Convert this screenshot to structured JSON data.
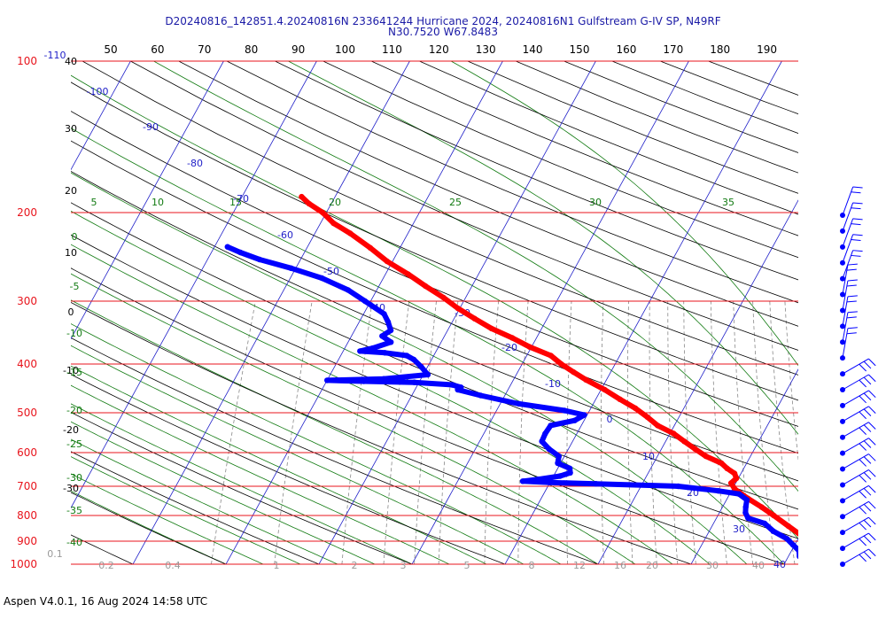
{
  "header": {
    "title_line1": "D20240816_142851.4.20240816N 233641244 Hurricane 2024, 20240816N1 Gulfstream G-IV SP, N49RF",
    "title_line2": "N30.7520 W67.8483"
  },
  "footer": {
    "text": "Aspen V4.0.1, 16 Aug 2024  14:58 UTC"
  },
  "colors": {
    "pressure_lines": "#e8141c",
    "pressure_labels": "#e8141c",
    "isotherms": "#1f1fc8",
    "dry_adiabats": "#000000",
    "moist_adiabats": "#117a11",
    "mixing_ratio": "#888888",
    "temperature": "#ff0000",
    "dewpoint": "#0000ff",
    "wind_barbs": "#0000ff"
  },
  "chart_data": {
    "type": "skew-t",
    "title": "D20240816_142851.4.20240816N 233641244 Hurricane 2024, 20240816N1 Gulfstream G-IV SP, N49RF",
    "subtitle": "N30.7520 W67.8483",
    "pressure_levels_hpa": [
      "100",
      "200",
      "300",
      "400",
      "500",
      "600",
      "700",
      "800",
      "900",
      "1000"
    ],
    "theta_axis_labels": [
      "50",
      "60",
      "70",
      "80",
      "90",
      "100",
      "110",
      "120",
      "130",
      "140",
      "150",
      "160",
      "170",
      "180",
      "190"
    ],
    "isotherm_labels": [
      "-110",
      "-100",
      "-90",
      "-80",
      "-70",
      "-60",
      "-50",
      "-40",
      "-30",
      "-20",
      "-10",
      "0",
      "10",
      "20",
      "30",
      "40"
    ],
    "dry_adiabat_labels": [
      "40",
      "30",
      "20",
      "10",
      "0",
      "-10",
      "-20",
      "-30"
    ],
    "moist_adiabat_labels": [
      "5",
      "10",
      "15",
      "20",
      "25",
      "30",
      "35"
    ],
    "moist_adiabat_left_labels": [
      "0",
      "-5",
      "-10",
      "-15",
      "-20",
      "-25",
      "-30",
      "-35",
      "-40"
    ],
    "mixing_ratio_labels": [
      "0.1",
      "0.2",
      "0.4",
      "1",
      "2",
      "3",
      "5",
      "8",
      "12",
      "16",
      "20",
      "30",
      "40"
    ],
    "temperature_profile": [
      {
        "p": 1010,
        "t": 27.5
      },
      {
        "p": 1000,
        "t": 26.5
      },
      {
        "p": 985,
        "t": 25.6
      },
      {
        "p": 960,
        "t": 24.3
      },
      {
        "p": 930,
        "t": 22.8
      },
      {
        "p": 900,
        "t": 21.2
      },
      {
        "p": 870,
        "t": 19.8
      },
      {
        "p": 840,
        "t": 18.2
      },
      {
        "p": 800,
        "t": 16.0
      },
      {
        "p": 770,
        "t": 14.2
      },
      {
        "p": 740,
        "t": 12.2
      },
      {
        "p": 710,
        "t": 10.3
      },
      {
        "p": 690,
        "t": 9.5
      },
      {
        "p": 675,
        "t": 9.8
      },
      {
        "p": 660,
        "t": 9.3
      },
      {
        "p": 645,
        "t": 8.2
      },
      {
        "p": 630,
        "t": 7.3
      },
      {
        "p": 610,
        "t": 5.2
      },
      {
        "p": 590,
        "t": 3.6
      },
      {
        "p": 570,
        "t": 2.0
      },
      {
        "p": 550,
        "t": 0.4
      },
      {
        "p": 530,
        "t": -1.8
      },
      {
        "p": 510,
        "t": -3.4
      },
      {
        "p": 490,
        "t": -5.2
      },
      {
        "p": 470,
        "t": -7.4
      },
      {
        "p": 450,
        "t": -9.6
      },
      {
        "p": 430,
        "t": -12.2
      },
      {
        "p": 415,
        "t": -14.0
      },
      {
        "p": 400,
        "t": -15.8
      },
      {
        "p": 385,
        "t": -17.4
      },
      {
        "p": 370,
        "t": -20.2
      },
      {
        "p": 355,
        "t": -22.6
      },
      {
        "p": 340,
        "t": -25.4
      },
      {
        "p": 325,
        "t": -27.8
      },
      {
        "p": 310,
        "t": -30.2
      },
      {
        "p": 295,
        "t": -32.4
      },
      {
        "p": 280,
        "t": -35.0
      },
      {
        "p": 265,
        "t": -37.6
      },
      {
        "p": 250,
        "t": -40.6
      },
      {
        "p": 235,
        "t": -43.2
      },
      {
        "p": 220,
        "t": -46.2
      },
      {
        "p": 210,
        "t": -48.6
      },
      {
        "p": 200,
        "t": -50.4
      },
      {
        "p": 192,
        "t": -52.4
      },
      {
        "p": 186,
        "t": -53.6
      }
    ],
    "dewpoint_profile": [
      {
        "p": 1010,
        "t": 23.3
      },
      {
        "p": 990,
        "t": 22.4
      },
      {
        "p": 965,
        "t": 21.2
      },
      {
        "p": 940,
        "t": 20.8
      },
      {
        "p": 915,
        "t": 19.8
      },
      {
        "p": 890,
        "t": 18.8
      },
      {
        "p": 860,
        "t": 16.9
      },
      {
        "p": 830,
        "t": 15.5
      },
      {
        "p": 810,
        "t": 13.4
      },
      {
        "p": 790,
        "t": 12.8
      },
      {
        "p": 770,
        "t": 12.5
      },
      {
        "p": 745,
        "t": 12.2
      },
      {
        "p": 725,
        "t": 11.0
      },
      {
        "p": 715,
        "t": 8.6
      },
      {
        "p": 700,
        "t": 4.0
      },
      {
        "p": 692,
        "t": -5.0
      },
      {
        "p": 688,
        "t": -10.0
      },
      {
        "p": 684,
        "t": -13.0
      },
      {
        "p": 678,
        "t": -11.4
      },
      {
        "p": 668,
        "t": -9.3
      },
      {
        "p": 658,
        "t": -8.4
      },
      {
        "p": 645,
        "t": -8.7
      },
      {
        "p": 630,
        "t": -10.3
      },
      {
        "p": 610,
        "t": -10.6
      },
      {
        "p": 590,
        "t": -12.1
      },
      {
        "p": 570,
        "t": -13.3
      },
      {
        "p": 550,
        "t": -13.4
      },
      {
        "p": 530,
        "t": -13.3
      },
      {
        "p": 518,
        "t": -11.0
      },
      {
        "p": 505,
        "t": -10.3
      },
      {
        "p": 495,
        "t": -12.7
      },
      {
        "p": 480,
        "t": -18.0
      },
      {
        "p": 462,
        "t": -22.6
      },
      {
        "p": 450,
        "t": -25.4
      },
      {
        "p": 445,
        "t": -25.2
      },
      {
        "p": 440,
        "t": -26.3
      },
      {
        "p": 435,
        "t": -30.5
      },
      {
        "p": 433,
        "t": -36.0
      },
      {
        "p": 431,
        "t": -40.0
      },
      {
        "p": 428,
        "t": -34.0
      },
      {
        "p": 420,
        "t": -29.5
      },
      {
        "p": 405,
        "t": -30.7
      },
      {
        "p": 392,
        "t": -31.9
      },
      {
        "p": 385,
        "t": -32.9
      },
      {
        "p": 380,
        "t": -35.4
      },
      {
        "p": 377,
        "t": -38.2
      },
      {
        "p": 372,
        "t": -37.0
      },
      {
        "p": 362,
        "t": -35.4
      },
      {
        "p": 352,
        "t": -36.7
      },
      {
        "p": 343,
        "t": -36.1
      },
      {
        "p": 330,
        "t": -36.9
      },
      {
        "p": 318,
        "t": -37.8
      },
      {
        "p": 300,
        "t": -40.6
      },
      {
        "p": 285,
        "t": -43.1
      },
      {
        "p": 270,
        "t": -46.6
      },
      {
        "p": 258,
        "t": -50.5
      },
      {
        "p": 248,
        "t": -54.4
      },
      {
        "p": 240,
        "t": -56.9
      },
      {
        "p": 234,
        "t": -58.6
      }
    ],
    "wind_barb_count": 23
  }
}
